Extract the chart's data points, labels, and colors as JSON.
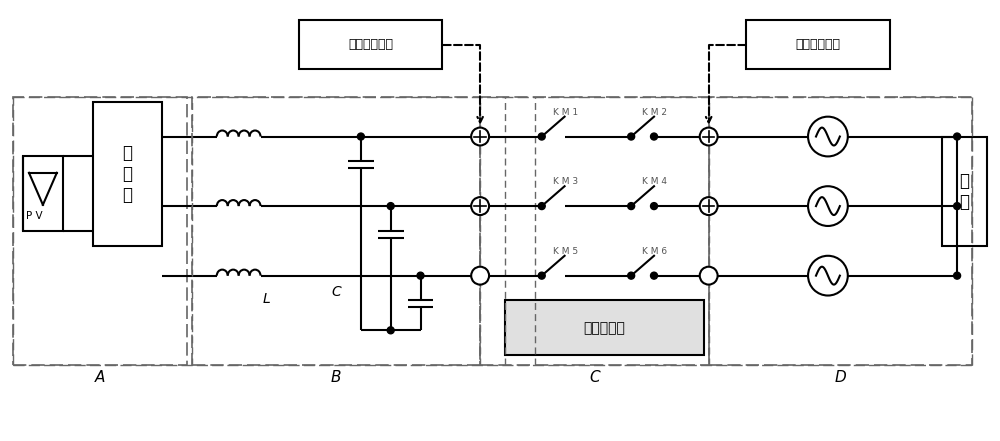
{
  "bg_color": "#ffffff",
  "line_color": "#000000",
  "dashed_box_color": "#666666",
  "fig_width": 10.0,
  "fig_height": 4.41,
  "labels": {
    "inverter_voltage": "逆变电压检测",
    "grid_voltage": "电网电压检测",
    "inverter_box": "逆\n变\n器",
    "pv": "P V",
    "L": "L",
    "C": "C",
    "relay_drive": "继电器驱动",
    "grid": "电\n网",
    "A": "A",
    "B": "B",
    "C_label": "C",
    "D": "D",
    "KM1": "K M 1",
    "KM2": "K M 2",
    "KM3": "K M 3",
    "KM4": "K M 4",
    "KM5": "K M 5",
    "KM6": "K M 6"
  }
}
